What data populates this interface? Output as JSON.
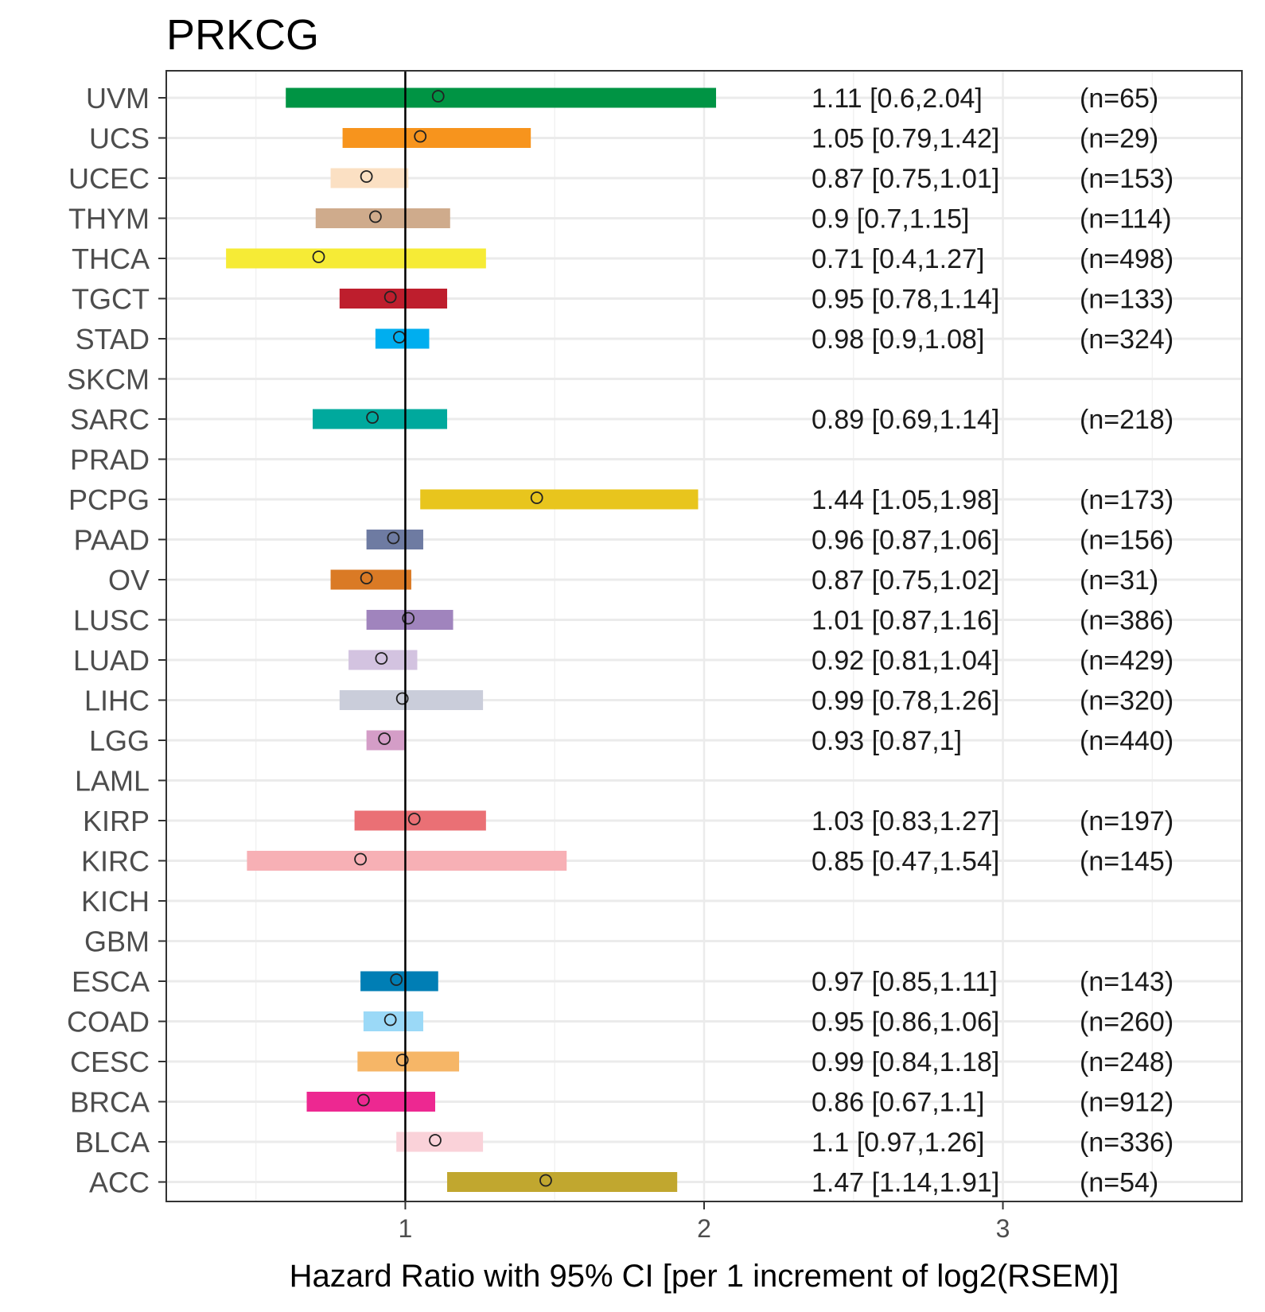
{
  "chart_data": {
    "type": "forest",
    "title": "PRKCG",
    "xlabel": "Hazard Ratio with 95% CI [per 1 increment of log2(RSEM)]",
    "ylabel": "",
    "xlim": [
      0.2,
      3.8
    ],
    "xticks": [
      1,
      2,
      3
    ],
    "reference_line": 1,
    "grid": true,
    "rows": [
      {
        "label": "UVM",
        "hr": 1.11,
        "lo": 0.6,
        "hi": 2.04,
        "n": 65,
        "color": "#009444",
        "hr_text": "1.11 [0.6,2.04]",
        "n_text": "(n=65)"
      },
      {
        "label": "UCS",
        "hr": 1.05,
        "lo": 0.79,
        "hi": 1.42,
        "n": 29,
        "color": "#F7941D",
        "hr_text": "1.05 [0.79,1.42]",
        "n_text": "(n=29)"
      },
      {
        "label": "UCEC",
        "hr": 0.87,
        "lo": 0.75,
        "hi": 1.01,
        "n": 153,
        "color": "#FBE0C3",
        "hr_text": "0.87 [0.75,1.01]",
        "n_text": "(n=153)"
      },
      {
        "label": "THYM",
        "hr": 0.9,
        "lo": 0.7,
        "hi": 1.15,
        "n": 114,
        "color": "#CFAB8C",
        "hr_text": "0.9 [0.7,1.15]",
        "n_text": "(n=114)"
      },
      {
        "label": "THCA",
        "hr": 0.71,
        "lo": 0.4,
        "hi": 1.27,
        "n": 498,
        "color": "#F6EB36",
        "hr_text": "0.71 [0.4,1.27]",
        "n_text": "(n=498)"
      },
      {
        "label": "TGCT",
        "hr": 0.95,
        "lo": 0.78,
        "hi": 1.14,
        "n": 133,
        "color": "#BE1E2D",
        "hr_text": "0.95 [0.78,1.14]",
        "n_text": "(n=133)"
      },
      {
        "label": "STAD",
        "hr": 0.98,
        "lo": 0.9,
        "hi": 1.08,
        "n": 324,
        "color": "#00AEEF",
        "hr_text": "0.98 [0.9,1.08]",
        "n_text": "(n=324)"
      },
      {
        "label": "SKCM",
        "hr": null,
        "lo": null,
        "hi": null,
        "n": null,
        "color": "#BBBBBB",
        "hr_text": "",
        "n_text": ""
      },
      {
        "label": "SARC",
        "hr": 0.89,
        "lo": 0.69,
        "hi": 1.14,
        "n": 218,
        "color": "#00A99D",
        "hr_text": "0.89 [0.69,1.14]",
        "n_text": "(n=218)"
      },
      {
        "label": "PRAD",
        "hr": null,
        "lo": null,
        "hi": null,
        "n": null,
        "color": "#BBBBBB",
        "hr_text": "",
        "n_text": ""
      },
      {
        "label": "PCPG",
        "hr": 1.44,
        "lo": 1.05,
        "hi": 1.98,
        "n": 173,
        "color": "#E8C51D",
        "hr_text": "1.44 [1.05,1.98]",
        "n_text": "(n=173)"
      },
      {
        "label": "PAAD",
        "hr": 0.96,
        "lo": 0.87,
        "hi": 1.06,
        "n": 156,
        "color": "#6E7BA2",
        "hr_text": "0.96 [0.87,1.06]",
        "n_text": "(n=156)"
      },
      {
        "label": "OV",
        "hr": 0.87,
        "lo": 0.75,
        "hi": 1.02,
        "n": 31,
        "color": "#DA7A25",
        "hr_text": "0.87 [0.75,1.02]",
        "n_text": "(n=31)"
      },
      {
        "label": "LUSC",
        "hr": 1.01,
        "lo": 0.87,
        "hi": 1.16,
        "n": 386,
        "color": "#A084BD",
        "hr_text": "1.01 [0.87,1.16]",
        "n_text": "(n=386)"
      },
      {
        "label": "LUAD",
        "hr": 0.92,
        "lo": 0.81,
        "hi": 1.04,
        "n": 429,
        "color": "#D3C3E0",
        "hr_text": "0.92 [0.81,1.04]",
        "n_text": "(n=429)"
      },
      {
        "label": "LIHC",
        "hr": 0.99,
        "lo": 0.78,
        "hi": 1.26,
        "n": 320,
        "color": "#CACDDA",
        "hr_text": "0.99 [0.78,1.26]",
        "n_text": "(n=320)"
      },
      {
        "label": "LGG",
        "hr": 0.93,
        "lo": 0.87,
        "hi": 1,
        "n": 440,
        "color": "#D49DC7",
        "hr_text": "0.93 [0.87,1]",
        "n_text": "(n=440)"
      },
      {
        "label": "LAML",
        "hr": null,
        "lo": null,
        "hi": null,
        "n": null,
        "color": "#BBBBBB",
        "hr_text": "",
        "n_text": ""
      },
      {
        "label": "KIRP",
        "hr": 1.03,
        "lo": 0.83,
        "hi": 1.27,
        "n": 197,
        "color": "#EA7075",
        "hr_text": "1.03 [0.83,1.27]",
        "n_text": "(n=197)"
      },
      {
        "label": "KIRC",
        "hr": 0.85,
        "lo": 0.47,
        "hi": 1.54,
        "n": 145,
        "color": "#F7B0B5",
        "hr_text": "0.85 [0.47,1.54]",
        "n_text": "(n=145)"
      },
      {
        "label": "KICH",
        "hr": null,
        "lo": null,
        "hi": null,
        "n": null,
        "color": "#BBBBBB",
        "hr_text": "",
        "n_text": ""
      },
      {
        "label": "GBM",
        "hr": null,
        "lo": null,
        "hi": null,
        "n": null,
        "color": "#BBBBBB",
        "hr_text": "",
        "n_text": ""
      },
      {
        "label": "ESCA",
        "hr": 0.97,
        "lo": 0.85,
        "hi": 1.11,
        "n": 143,
        "color": "#007EB5",
        "hr_text": "0.97 [0.85,1.11]",
        "n_text": "(n=143)"
      },
      {
        "label": "COAD",
        "hr": 0.95,
        "lo": 0.86,
        "hi": 1.06,
        "n": 260,
        "color": "#9BD9F7",
        "hr_text": "0.95 [0.86,1.06]",
        "n_text": "(n=260)"
      },
      {
        "label": "CESC",
        "hr": 0.99,
        "lo": 0.84,
        "hi": 1.18,
        "n": 248,
        "color": "#F6B667",
        "hr_text": "0.99 [0.84,1.18]",
        "n_text": "(n=248)"
      },
      {
        "label": "BRCA",
        "hr": 0.86,
        "lo": 0.67,
        "hi": 1.1,
        "n": 912,
        "color": "#ED2891",
        "hr_text": "0.86 [0.67,1.1]",
        "n_text": "(n=912)"
      },
      {
        "label": "BLCA",
        "hr": 1.1,
        "lo": 0.97,
        "hi": 1.26,
        "n": 336,
        "color": "#FAD2D9",
        "hr_text": "1.1 [0.97,1.26]",
        "n_text": "(n=336)"
      },
      {
        "label": "ACC",
        "hr": 1.47,
        "lo": 1.14,
        "hi": 1.91,
        "n": 54,
        "color": "#C1A72F",
        "hr_text": "1.47 [1.14,1.91]",
        "n_text": "(n=54)"
      }
    ]
  }
}
